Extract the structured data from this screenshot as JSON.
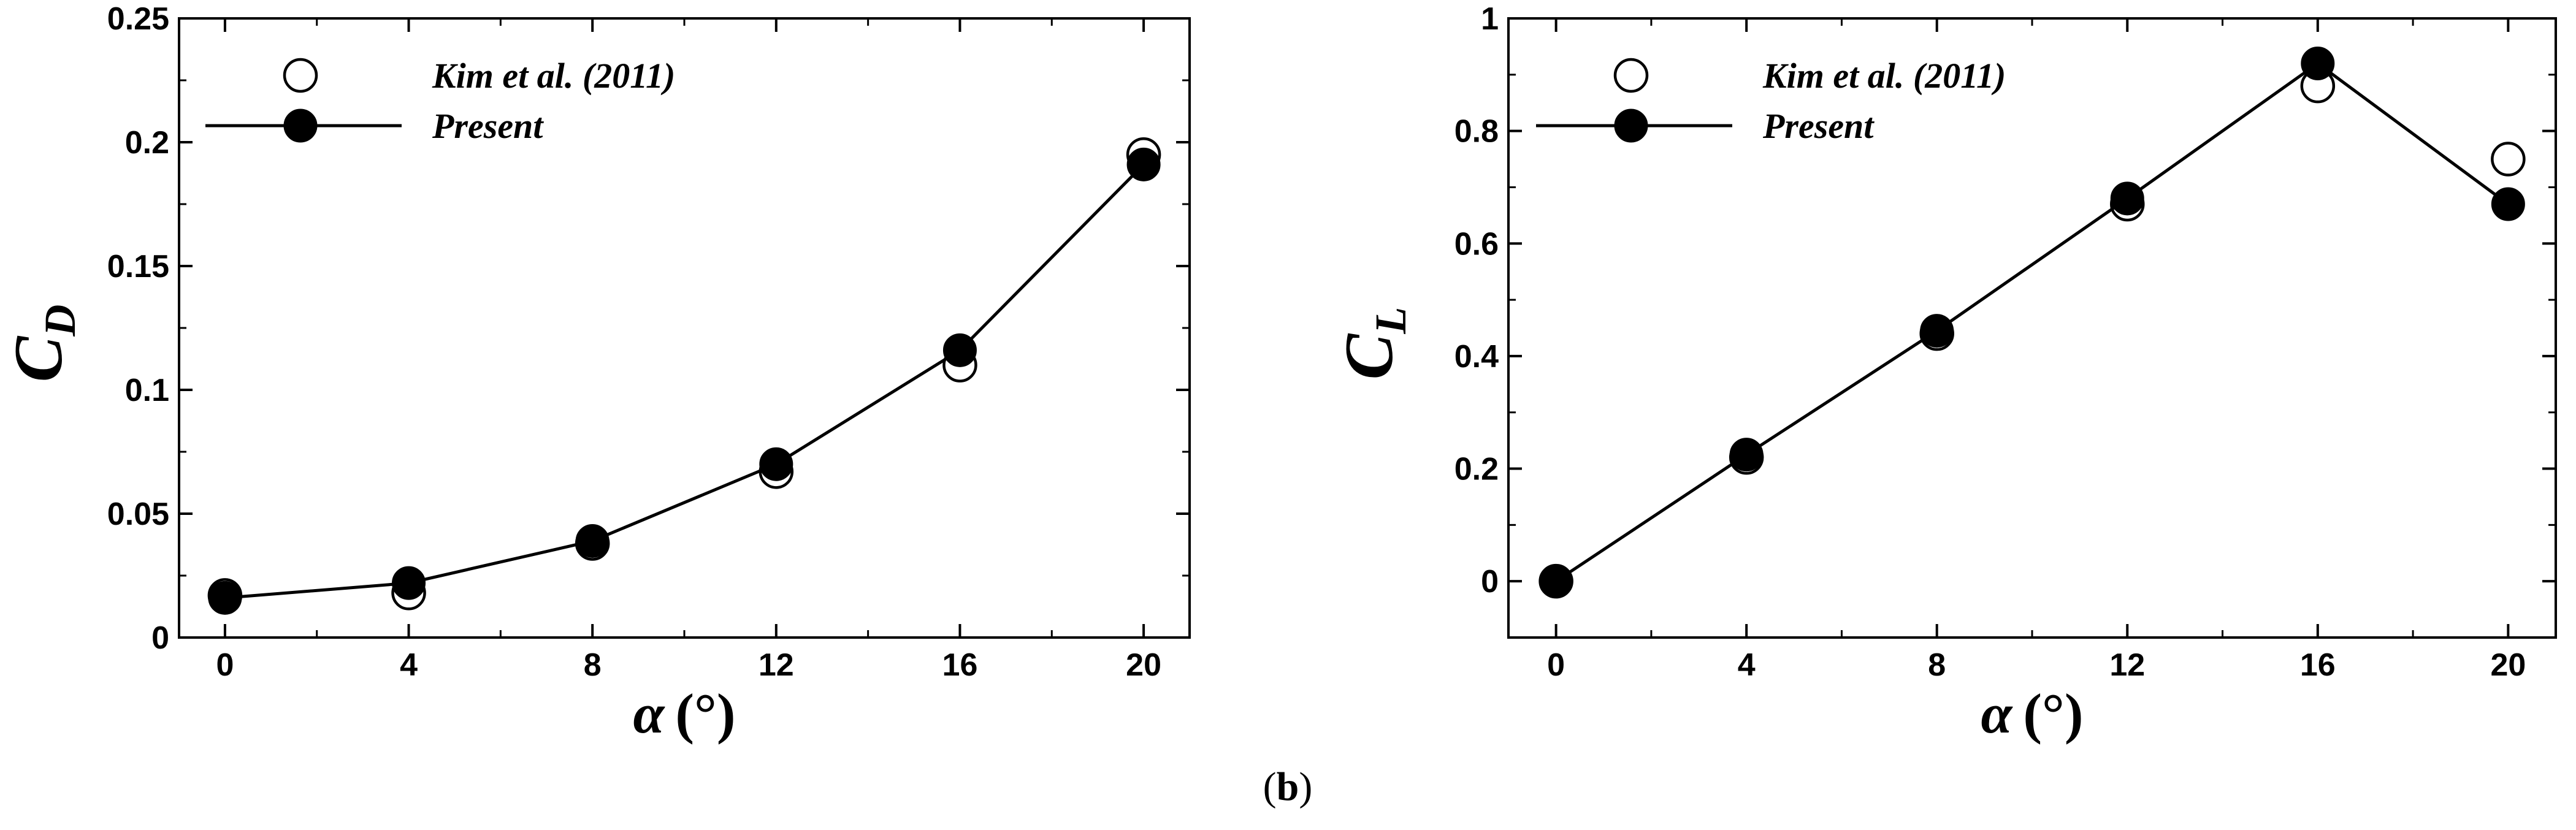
{
  "caption": {
    "open": "(",
    "letter": "b",
    "close": ")"
  },
  "colors": {
    "axis": "#000000",
    "marker_open_fill": "#ffffff",
    "marker_filled": "#000000",
    "line": "#000000"
  },
  "chart_data": [
    {
      "type": "line",
      "title": "",
      "xlabel": {
        "symbol": "α",
        "unit": "(°)"
      },
      "ylabel": {
        "symbol": "C",
        "subscript": "D"
      },
      "xlim": [
        -1,
        21
      ],
      "ylim": [
        0,
        0.25
      ],
      "x_ticks": [
        0,
        4,
        8,
        12,
        16,
        20
      ],
      "x_tick_labels": [
        "0",
        "4",
        "8",
        "12",
        "16",
        "20"
      ],
      "y_ticks": [
        0,
        0.05,
        0.1,
        0.15,
        0.2,
        0.25
      ],
      "y_tick_labels": [
        "0",
        "0.05",
        "0.1",
        "0.15",
        "0.2",
        "0.25"
      ],
      "grid": false,
      "legend_position": "top-left",
      "series": [
        {
          "name": "Kim et al. (2011)",
          "marker": "open-circle",
          "line": false,
          "x": [
            0,
            4,
            8,
            12,
            16,
            20
          ],
          "y": [
            0.017,
            0.018,
            0.038,
            0.067,
            0.11,
            0.195
          ]
        },
        {
          "name": "Present",
          "marker": "filled-circle",
          "line": true,
          "x": [
            0,
            4,
            8,
            12,
            16,
            20
          ],
          "y": [
            0.016,
            0.022,
            0.039,
            0.07,
            0.116,
            0.191
          ]
        }
      ]
    },
    {
      "type": "line",
      "title": "",
      "xlabel": {
        "symbol": "α",
        "unit": "(°)"
      },
      "ylabel": {
        "symbol": "C",
        "subscript": "L"
      },
      "xlim": [
        -1,
        21
      ],
      "ylim": [
        -0.1,
        1
      ],
      "x_ticks": [
        0,
        4,
        8,
        12,
        16,
        20
      ],
      "x_tick_labels": [
        "0",
        "4",
        "8",
        "12",
        "16",
        "20"
      ],
      "y_ticks": [
        0,
        0.2,
        0.4,
        0.6,
        0.8,
        1
      ],
      "y_tick_labels": [
        "0",
        "0.2",
        "0.4",
        "0.6",
        "0.8",
        "1"
      ],
      "grid": false,
      "legend_position": "top-left",
      "series": [
        {
          "name": "Kim et al. (2011)",
          "marker": "open-circle",
          "line": false,
          "x": [
            0,
            4,
            8,
            12,
            16,
            20
          ],
          "y": [
            0.0,
            0.22,
            0.44,
            0.67,
            0.88,
            0.75
          ]
        },
        {
          "name": "Present",
          "marker": "filled-circle",
          "line": true,
          "x": [
            0,
            4,
            8,
            12,
            16,
            20
          ],
          "y": [
            0.0,
            0.225,
            0.445,
            0.68,
            0.92,
            0.67
          ]
        }
      ]
    }
  ]
}
